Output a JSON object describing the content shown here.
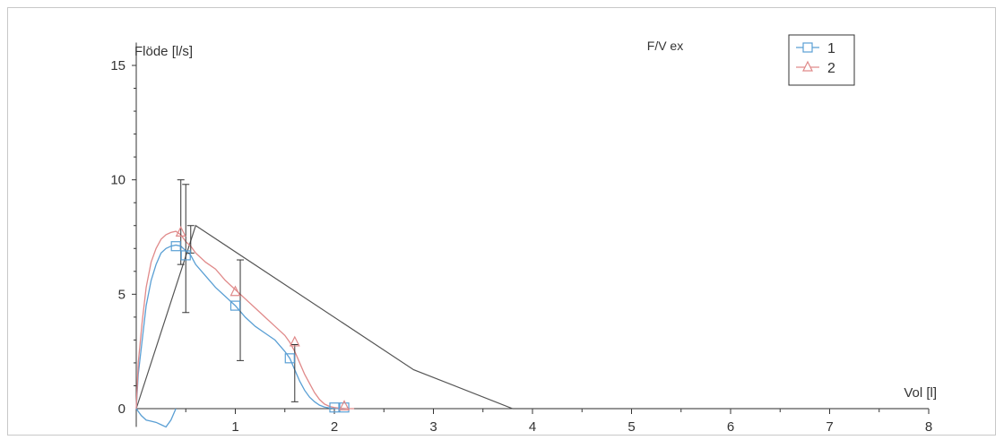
{
  "chart_data": {
    "type": "line",
    "title": "F/V ex",
    "xlabel": "Vol [l]",
    "ylabel": "Flöde [l/s]",
    "xlim": [
      0,
      8
    ],
    "ylim": [
      -0.8,
      16
    ],
    "xticks": [
      1,
      2,
      3,
      4,
      5,
      6,
      7,
      8
    ],
    "yticks": [
      0,
      5,
      10,
      15
    ],
    "grid": false,
    "legend": "top-right",
    "series": [
      {
        "name": "1",
        "color": "#5a9fd4",
        "marker": "square",
        "x": [
          0,
          0.02,
          0.06,
          0.1,
          0.15,
          0.2,
          0.25,
          0.3,
          0.35,
          0.4,
          0.45,
          0.5,
          0.55,
          0.6,
          0.7,
          0.8,
          0.9,
          1.0,
          1.1,
          1.2,
          1.3,
          1.4,
          1.5,
          1.55,
          1.6,
          1.65,
          1.7,
          1.75,
          1.8,
          1.85,
          1.9,
          1.95,
          2.0,
          2.05,
          2.1
        ],
        "y": [
          0,
          1.5,
          3.0,
          4.5,
          5.6,
          6.3,
          6.8,
          7.0,
          7.1,
          7.15,
          7.1,
          6.9,
          6.7,
          6.3,
          5.8,
          5.3,
          4.9,
          4.5,
          4.0,
          3.6,
          3.3,
          3.0,
          2.5,
          2.2,
          1.7,
          1.2,
          0.8,
          0.5,
          0.3,
          0.15,
          0.07,
          0.03,
          0.01,
          0,
          0
        ],
        "markers_x": [
          0.4,
          0.5,
          1.0,
          1.55,
          2.0,
          2.1
        ],
        "markers_y": [
          7.1,
          6.7,
          4.5,
          2.2,
          0.05,
          0.05
        ],
        "negative_dip_x": [
          0,
          0.05,
          0.1,
          0.15,
          0.2,
          0.25,
          0.3,
          0.35,
          0.4
        ],
        "negative_dip_y": [
          0,
          -0.3,
          -0.5,
          -0.55,
          -0.6,
          -0.7,
          -0.8,
          -0.5,
          0
        ]
      },
      {
        "name": "2",
        "color": "#e08a8a",
        "marker": "triangle",
        "x": [
          0,
          0.02,
          0.06,
          0.1,
          0.15,
          0.2,
          0.25,
          0.3,
          0.35,
          0.4,
          0.45,
          0.5,
          0.55,
          0.6,
          0.7,
          0.8,
          0.9,
          1.0,
          1.1,
          1.2,
          1.3,
          1.4,
          1.5,
          1.55,
          1.6,
          1.65,
          1.7,
          1.75,
          1.8,
          1.85,
          1.9,
          1.95,
          2.0,
          2.05,
          2.1,
          2.15,
          2.2
        ],
        "y": [
          0,
          2.0,
          3.8,
          5.3,
          6.4,
          7.0,
          7.4,
          7.6,
          7.7,
          7.75,
          7.6,
          7.3,
          7.1,
          6.8,
          6.4,
          6.1,
          5.6,
          5.2,
          4.8,
          4.4,
          4.0,
          3.6,
          3.2,
          2.9,
          2.5,
          2.0,
          1.5,
          1.1,
          0.7,
          0.4,
          0.2,
          0.1,
          0.05,
          0.02,
          0.01,
          0,
          0
        ],
        "markers_x": [
          0.45,
          1.0,
          1.6,
          2.1
        ],
        "markers_y": [
          7.7,
          5.1,
          2.9,
          0.1
        ]
      }
    ],
    "reference_curve": {
      "color": "#555555",
      "x": [
        0,
        0.6,
        2.8,
        3.8,
        8.0
      ],
      "y": [
        0,
        8.0,
        1.7,
        0,
        0
      ]
    },
    "error_bars": [
      {
        "x": 0.45,
        "low": 6.3,
        "high": 10.0
      },
      {
        "x": 0.5,
        "low": 4.2,
        "high": 9.8
      },
      {
        "x": 0.55,
        "low": 6.8,
        "high": 8.0
      },
      {
        "x": 1.05,
        "low": 2.1,
        "high": 6.5
      },
      {
        "x": 1.6,
        "low": 0.3,
        "high": 2.8
      }
    ]
  }
}
